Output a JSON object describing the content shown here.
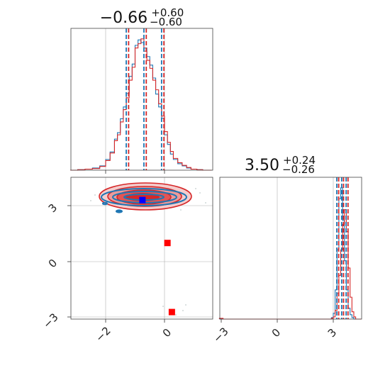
{
  "chart_data": {
    "type": "corner",
    "colors": {
      "blue": "#1f77b4",
      "red": "#d62728",
      "marker_red": "#ff0000",
      "marker_blue": "#0000ff"
    },
    "parameters": [
      {
        "title_main": "−0.66",
        "title_sup": "+0.60",
        "title_sub": "−0.60",
        "median": -0.66,
        "lower": -1.26,
        "upper": -0.06,
        "ticks": [
          "−2",
          "0"
        ],
        "tick_values": [
          -2,
          0
        ],
        "range": [
          -3.2,
          1.6
        ]
      },
      {
        "title_main": "3.50",
        "title_sup": "+0.24",
        "title_sub": "−0.26",
        "median": 3.5,
        "lower": 3.24,
        "upper": 3.74,
        "ticks": [
          "−3",
          "0",
          "3"
        ],
        "tick_values": [
          -3,
          0,
          3
        ],
        "range": [
          -3.1,
          4.5
        ]
      }
    ],
    "marginal_1": {
      "x": [
        -3.2,
        -2.95,
        -2.7,
        -2.45,
        -2.2,
        -2.0,
        -1.85,
        -1.7,
        -1.6,
        -1.5,
        -1.4,
        -1.3,
        -1.2,
        -1.1,
        -1.0,
        -0.9,
        -0.8,
        -0.7,
        -0.6,
        -0.5,
        -0.4,
        -0.3,
        -0.2,
        -0.1,
        0.0,
        0.1,
        0.2,
        0.3,
        0.45,
        0.6,
        0.75,
        0.9,
        1.1,
        1.3,
        1.6
      ],
      "series": [
        {
          "name": "blue",
          "counts": [
            0,
            1,
            2,
            4,
            8,
            20,
            34,
            58,
            70,
            96,
            118,
            143,
            175,
            198,
            233,
            243,
            238,
            228,
            212,
            196,
            172,
            142,
            118,
            97,
            66,
            48,
            30,
            20,
            12,
            8,
            4,
            2,
            1,
            0
          ]
        },
        {
          "name": "red",
          "counts": [
            0,
            1,
            2,
            3,
            7,
            18,
            32,
            55,
            66,
            90,
            113,
            135,
            168,
            192,
            228,
            236,
            245,
            222,
            205,
            190,
            168,
            150,
            124,
            101,
            72,
            52,
            35,
            22,
            14,
            9,
            5,
            2,
            1,
            0
          ]
        }
      ]
    },
    "marginal_2": {
      "x": [
        -3.1,
        -2.9,
        2.9,
        3.0,
        3.1,
        3.2,
        3.3,
        3.4,
        3.5,
        3.6,
        3.7,
        3.8,
        3.9,
        4.0,
        4.1,
        4.2,
        4.5
      ],
      "series": [
        {
          "name": "blue",
          "counts": [
            0,
            0,
            2,
            8,
            40,
            95,
            165,
            180,
            135,
            80,
            40,
            15,
            6,
            2,
            0,
            0
          ]
        },
        {
          "name": "red",
          "counts": [
            1,
            0,
            1,
            3,
            12,
            35,
            60,
            95,
            130,
            150,
            120,
            70,
            30,
            10,
            3,
            0
          ]
        }
      ]
    },
    "joint": {
      "x_ticks": [
        "−2",
        "0"
      ],
      "y_ticks": [
        "−3",
        "0",
        "3"
      ],
      "markers": [
        {
          "x": -0.75,
          "y": 3.3,
          "color": "blue"
        },
        {
          "x": 0.1,
          "y": 1.0,
          "color": "red"
        },
        {
          "x": 0.25,
          "y": -2.7,
          "color": "red"
        }
      ]
    }
  }
}
